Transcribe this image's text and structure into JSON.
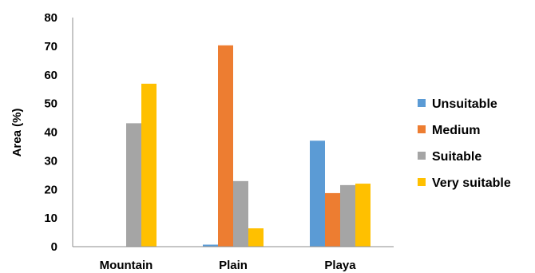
{
  "chart_data": {
    "type": "bar",
    "categories": [
      "Mountain",
      "Plain",
      "Playa"
    ],
    "series": [
      {
        "name": "Unsuitable",
        "color": "#5B9BD5",
        "values": [
          0,
          0.7,
          37
        ]
      },
      {
        "name": "Medium",
        "color": "#ED7D31",
        "values": [
          0,
          70.3,
          18.7
        ]
      },
      {
        "name": "Suitable",
        "color": "#A5A5A5",
        "values": [
          43.1,
          22.9,
          21.5
        ]
      },
      {
        "name": "Very suitable",
        "color": "#FFC000",
        "values": [
          56.9,
          6.4,
          22
        ]
      }
    ],
    "title": "",
    "xlabel": "",
    "ylabel": "Area (%)",
    "ylim": [
      0,
      80
    ],
    "yticks": [
      "0",
      "10",
      "20",
      "30",
      "40",
      "50",
      "60",
      "70",
      "80"
    ],
    "grid": false,
    "legend_position": "right"
  }
}
